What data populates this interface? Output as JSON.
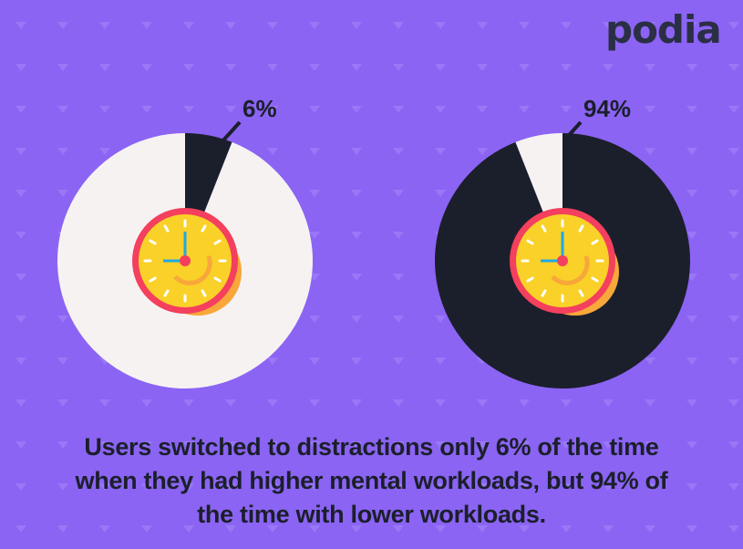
{
  "logo": "podia",
  "caption": "Users switched to distractions only 6% of the time when they had higher mental workloads, but 94% of the time with lower workloads.",
  "colors": {
    "background": "#8b64f4",
    "pattern": "#a487f7",
    "slice_dark": "#1b1f2b",
    "slice_light": "#f6f2f2",
    "clock_face": "#f9d128",
    "clock_ring": "#f43f5e",
    "gear": "#f8a73a",
    "hand": "#1ea8e8"
  },
  "icons": [
    "clock-gear-icon"
  ],
  "chart_data": [
    {
      "type": "pie",
      "slices": [
        {
          "label": "6%",
          "value": 6
        },
        {
          "label": "",
          "value": 94
        }
      ],
      "title": "",
      "labels": [
        "6%"
      ]
    },
    {
      "type": "pie",
      "slices": [
        {
          "label": "94%",
          "value": 94
        },
        {
          "label": "",
          "value": 6
        }
      ],
      "title": "",
      "labels": [
        "94%"
      ]
    }
  ]
}
